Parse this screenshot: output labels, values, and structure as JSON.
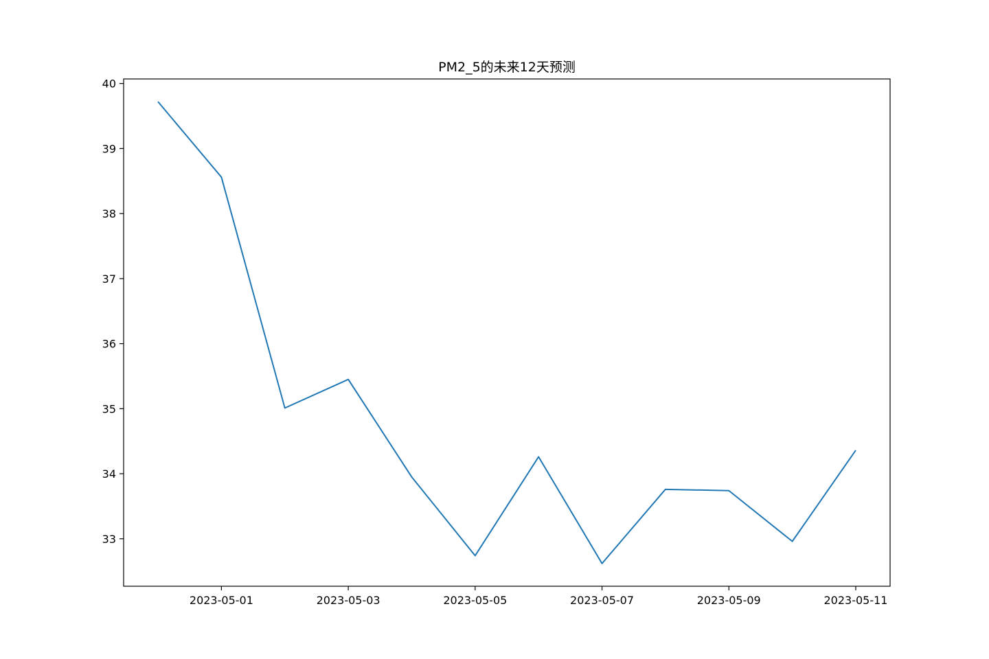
{
  "chart_data": {
    "type": "line",
    "title": "PM2_5的未来12天预测",
    "xlabel": "",
    "ylabel": "",
    "x": [
      "2023-04-30",
      "2023-05-01",
      "2023-05-02",
      "2023-05-03",
      "2023-05-04",
      "2023-05-05",
      "2023-05-06",
      "2023-05-07",
      "2023-05-08",
      "2023-05-09",
      "2023-05-10",
      "2023-05-11"
    ],
    "series": [
      {
        "values": [
          39.72,
          38.56,
          35.01,
          35.45,
          33.95,
          32.74,
          34.26,
          32.62,
          33.76,
          33.74,
          32.96,
          34.36
        ],
        "color": "#1f77b4"
      }
    ],
    "x_ticks": [
      "2023-05-01",
      "2023-05-03",
      "2023-05-05",
      "2023-05-07",
      "2023-05-09",
      "2023-05-11"
    ],
    "y_ticks": [
      33,
      34,
      35,
      36,
      37,
      38,
      39,
      40
    ],
    "xlim": [
      "2023-04-29T11:00",
      "2023-05-11T13:00"
    ],
    "ylim": [
      32.27,
      40.07
    ],
    "grid": false,
    "legend": "none"
  }
}
